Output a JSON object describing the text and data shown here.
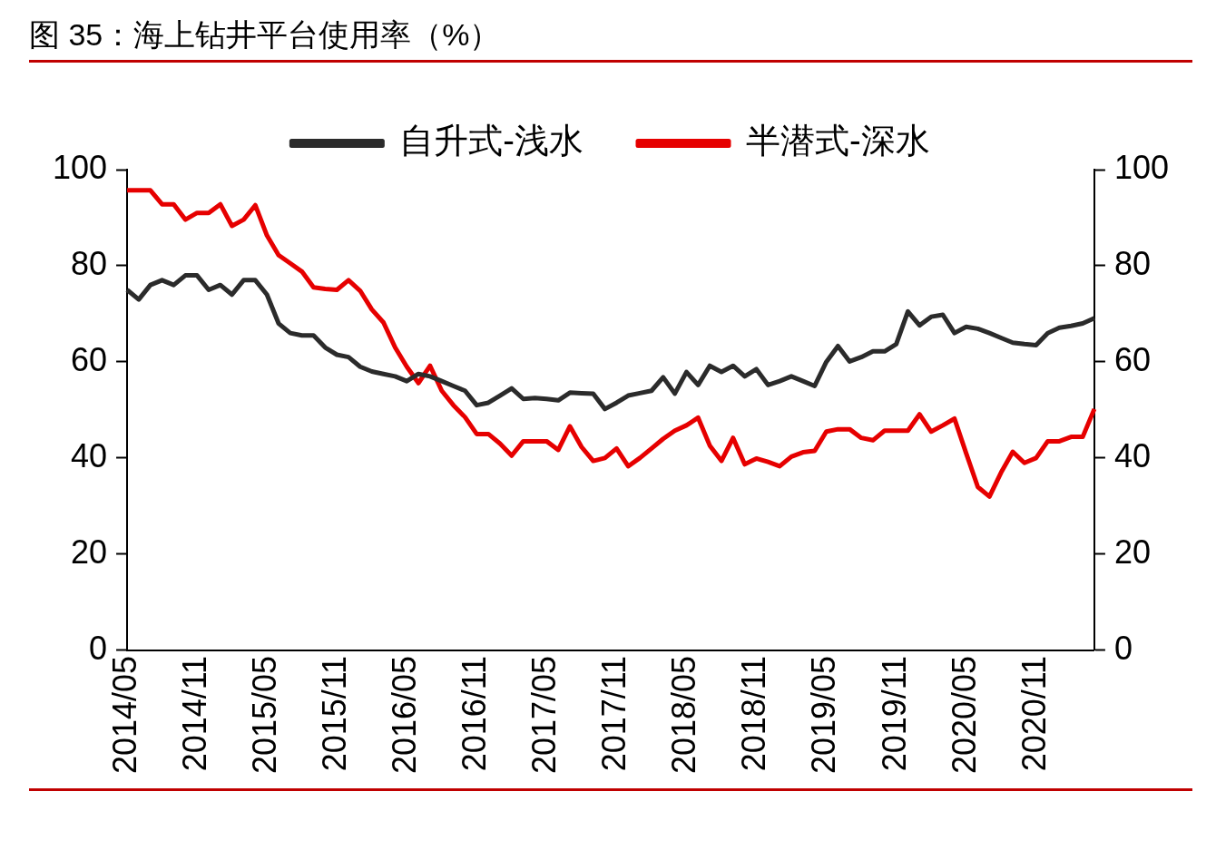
{
  "chart_data": {
    "type": "line",
    "title": "图 35：海上钻井平台使用率（%）",
    "categories": [
      "2014/05",
      null,
      null,
      null,
      null,
      null,
      "2014/11",
      null,
      null,
      null,
      null,
      null,
      "2015/05",
      null,
      null,
      null,
      null,
      null,
      "2015/11",
      null,
      null,
      null,
      null,
      null,
      "2016/05",
      null,
      null,
      null,
      null,
      null,
      "2016/11",
      null,
      null,
      null,
      null,
      null,
      "2017/05",
      null,
      null,
      null,
      null,
      null,
      "2017/11",
      null,
      null,
      null,
      null,
      null,
      "2018/05",
      null,
      null,
      null,
      null,
      null,
      "2018/11",
      null,
      null,
      null,
      null,
      null,
      "2019/05",
      null,
      null,
      null,
      null,
      null,
      "2019/11",
      null,
      null,
      null,
      null,
      null,
      "2020/05",
      null,
      null,
      null,
      null,
      null,
      "2020/11",
      null,
      null,
      null,
      null,
      null
    ],
    "series": [
      {
        "name": "自升式-浅水",
        "color": "#2b2b2b",
        "values": [
          75,
          73,
          76,
          77,
          76,
          78,
          78,
          75,
          76,
          74,
          77,
          77,
          74,
          68,
          66,
          65.5,
          65.5,
          63,
          61.5,
          61,
          59,
          58,
          57.5,
          57,
          56,
          57.5,
          57,
          56,
          55,
          54,
          51,
          51.5,
          53,
          54.5,
          52.3,
          52.5,
          52.3,
          52,
          53.6,
          53.5,
          53.4,
          50.2,
          51.5,
          53,
          53.5,
          54,
          56.8,
          53.4,
          57.9,
          55.2,
          59.2,
          57.9,
          59.2,
          57,
          58.5,
          55.2,
          56,
          57,
          56,
          55,
          60,
          63.3,
          60.1,
          61,
          62.2,
          62.2,
          63.7,
          70.5,
          67.6,
          69.4,
          69.8,
          66,
          67.3,
          66.9,
          66,
          65,
          64,
          63.7,
          63.5,
          66,
          67.1,
          67.5,
          68,
          69.1
        ]
      },
      {
        "name": "半潜式-深水",
        "color": "#e60000",
        "values": [
          95.7,
          95.7,
          95.7,
          92.8,
          92.8,
          89.6,
          91,
          91,
          92.8,
          88.3,
          89.6,
          92.6,
          86.3,
          82.2,
          80.5,
          78.8,
          75.5,
          75.2,
          75,
          77,
          74.8,
          70.9,
          68.2,
          63,
          59,
          55.6,
          59.2,
          54,
          51,
          48.5,
          45,
          45,
          43,
          40.5,
          43.5,
          43.5,
          43.5,
          41.7,
          46.6,
          42.3,
          39.4,
          40,
          42,
          38.3,
          40,
          42,
          44,
          45.7,
          46.8,
          48.4,
          42.6,
          39.4,
          44.2,
          38.7,
          39.9,
          39.2,
          38.3,
          40.3,
          41.2,
          41.5,
          45.5,
          46,
          46,
          44.2,
          43.7,
          45.7,
          45.7,
          45.7,
          49.1,
          45.5,
          46.8,
          48.2,
          41,
          34,
          32,
          37,
          41.3,
          39,
          40,
          43.5,
          43.5,
          44.4,
          44.4,
          50.2
        ]
      }
    ],
    "ylim": [
      0,
      100
    ],
    "yticks": [
      0,
      20,
      40,
      60,
      80,
      100
    ],
    "y2lim": [
      0,
      100
    ],
    "y2ticks": [
      0,
      20,
      40,
      60,
      80,
      100
    ],
    "grid": false,
    "legend": "top",
    "marker": "none",
    "line_style": "solid"
  }
}
